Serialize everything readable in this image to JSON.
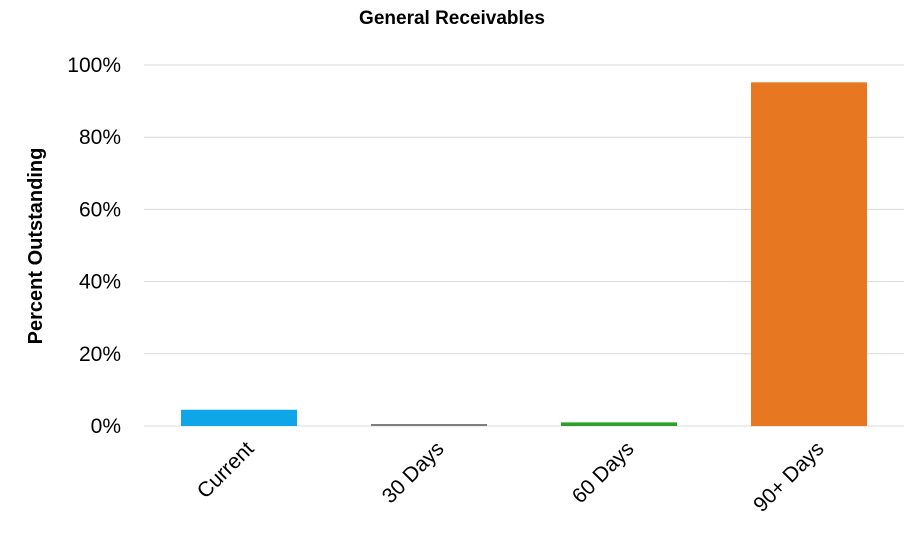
{
  "chart_data": {
    "type": "bar",
    "title": "General Receivables",
    "xlabel": "",
    "ylabel": "Percent Outstanding",
    "categories": [
      "Current",
      "30 Days",
      "60 Days",
      "90+ Days"
    ],
    "values": [
      4.5,
      0.4,
      1.0,
      95.2
    ],
    "bar_colors": [
      "#0ea5e9",
      "#7f7f7f",
      "#2ca02c",
      "#e87722"
    ],
    "ylim": [
      0,
      100
    ],
    "yticks": [
      0,
      20,
      40,
      60,
      80,
      100
    ],
    "ytick_labels": [
      "0%",
      "20%",
      "40%",
      "60%",
      "80%",
      "100%"
    ],
    "grid": true,
    "legend": "none"
  }
}
